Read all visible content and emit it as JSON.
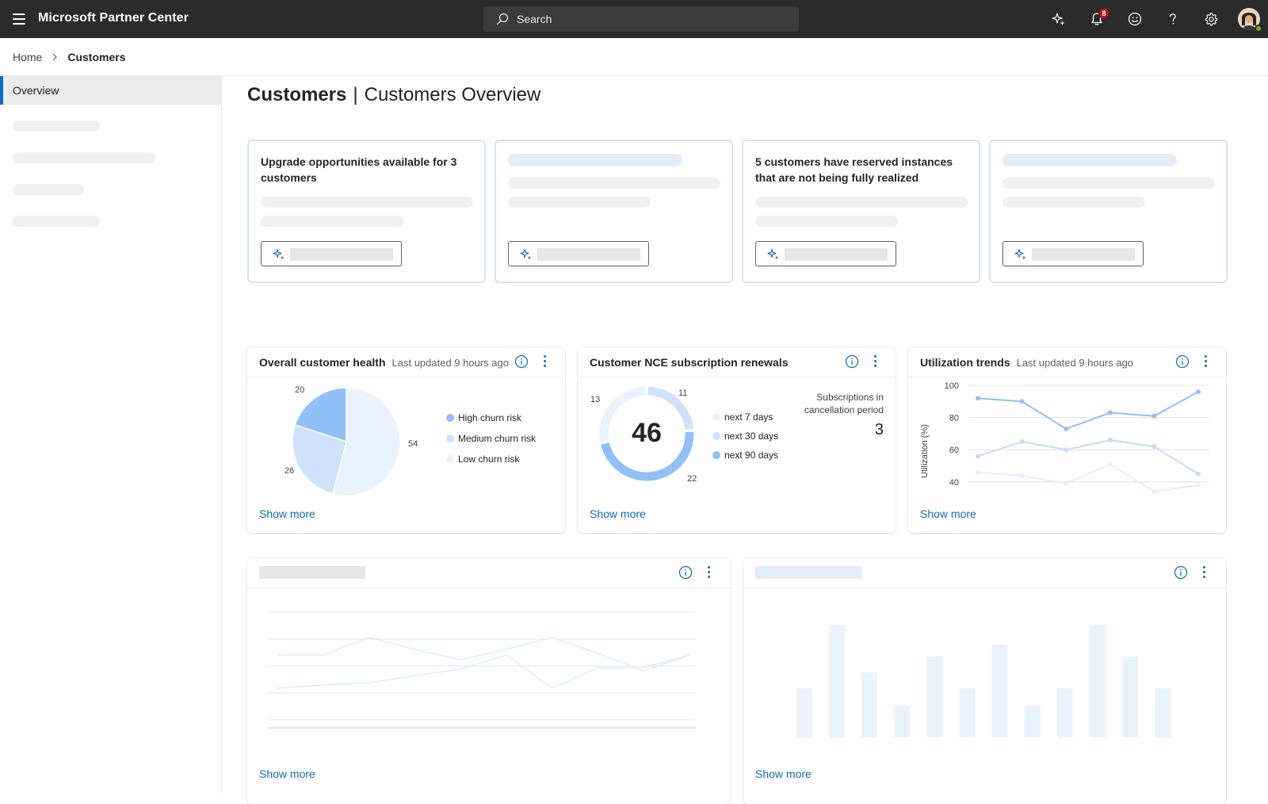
{
  "header": {
    "app_title": "Microsoft Partner Center",
    "search_placeholder": "Search",
    "notification_count": "8",
    "icons": [
      "menu-icon",
      "copilot-icon",
      "bell-icon",
      "smiley-icon",
      "help-icon",
      "settings-icon",
      "avatar"
    ]
  },
  "breadcrumb": {
    "home": "Home",
    "current": "Customers"
  },
  "sidebar": {
    "items": [
      {
        "label": "Overview",
        "selected": true
      }
    ]
  },
  "page": {
    "title_bold": "Customers",
    "title_rest": "Customers Overview"
  },
  "insights": [
    {
      "text": "Upgrade opportunities available for 3 customers",
      "loading": false
    },
    {
      "text": "",
      "loading": true
    },
    {
      "text": "5 customers have reserved instances that are not being fully realized",
      "loading": false
    },
    {
      "text": "",
      "loading": true
    }
  ],
  "widgets": {
    "health": {
      "title": "Overall customer health",
      "subtitle": "Last updated 9 hours ago",
      "show_more": "Show more",
      "labels": {
        "high": "20",
        "medium": "26",
        "low": "54"
      },
      "legend": [
        "High churn risk",
        "Medium churn risk",
        "Low churn risk"
      ]
    },
    "renewals": {
      "title": "Customer NCE subscription renewals",
      "show_more": "Show more",
      "total": "46",
      "labels": {
        "d7": "11",
        "d30": "13",
        "d90": "22"
      },
      "legend": [
        "next 7 days",
        "next 30 days",
        "next 90 days"
      ],
      "cancel_label": "Subscriptions in cancellation period",
      "cancel_value": "3"
    },
    "utilization": {
      "title": "Utilization trends",
      "subtitle": "Last updated 9 hours ago",
      "show_more": "Show more",
      "ylabel": "Utilization (%)",
      "yticks": [
        "100",
        "80",
        "60",
        "40"
      ]
    },
    "placeholder_line": {
      "show_more": "Show more"
    },
    "placeholder_bar": {
      "show_more": "Show more"
    }
  },
  "chart_data": [
    {
      "type": "pie",
      "title": "Overall customer health",
      "categories": [
        "High churn risk",
        "Medium churn risk",
        "Low churn risk"
      ],
      "values": [
        20,
        26,
        54
      ],
      "colors": [
        "#91c0f6",
        "#cfe2fb",
        "#eaf2fd"
      ]
    },
    {
      "type": "pie",
      "title": "Customer NCE subscription renewals",
      "categories": [
        "next 7 days",
        "next 30 days",
        "next 90 days"
      ],
      "values": [
        11,
        13,
        22
      ],
      "center_total": 46,
      "colors": [
        "#cfe2fb",
        "#eaf2fd",
        "#91c0f6"
      ]
    },
    {
      "type": "line",
      "title": "Utilization trends",
      "ylabel": "Utilization (%)",
      "ylim": [
        35,
        100
      ],
      "yticks": [
        100,
        80,
        60,
        40
      ],
      "x": [
        1,
        2,
        3,
        4,
        5,
        6
      ],
      "series": [
        {
          "values": [
            92,
            90,
            73,
            83,
            81,
            96
          ],
          "color": "#91c0f6"
        },
        {
          "values": [
            56,
            65,
            60,
            66,
            62,
            45
          ],
          "color": "#c4dcf8"
        },
        {
          "values": [
            46,
            44,
            39,
            51,
            34,
            38
          ],
          "color": "#e3eefc"
        }
      ]
    }
  ],
  "placeholders": {
    "line": {
      "series": [
        [
          62,
          62,
          40,
          55,
          68,
          55,
          40,
          60,
          82,
          62
        ],
        [
          104,
          100,
          97,
          88,
          80,
          62,
          104,
          78,
          78,
          62
        ]
      ]
    },
    "bar": {
      "values": [
        62,
        142,
        82,
        40,
        102,
        62,
        117,
        40,
        62,
        142,
        102,
        62
      ]
    }
  }
}
